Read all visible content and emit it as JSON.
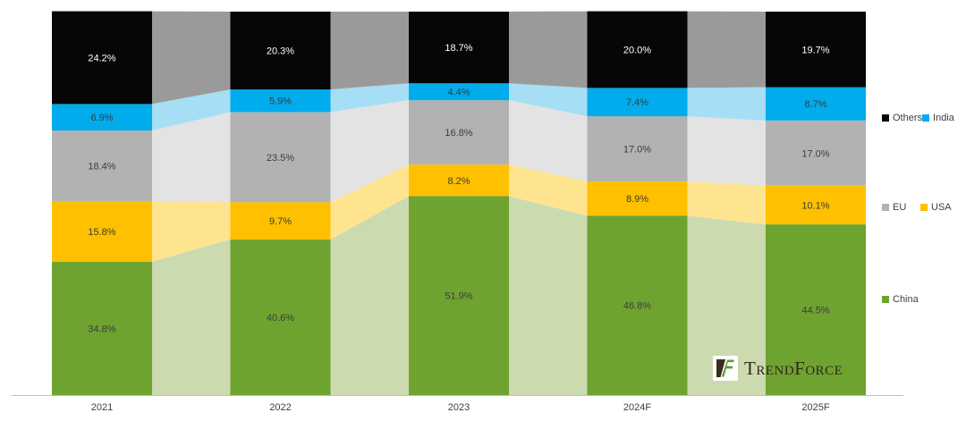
{
  "chart_data": {
    "type": "bar",
    "subtype": "100-percent-stacked-columns-with-flow-connectors",
    "categories": [
      "2021",
      "2022",
      "2023",
      "2024F",
      "2025F"
    ],
    "series": [
      {
        "name": "China",
        "color": "#6EA330",
        "connector_color": "#CCDAB0",
        "label_color": "#3C3C3C",
        "values": [
          34.8,
          40.6,
          51.9,
          46.8,
          44.5
        ]
      },
      {
        "name": "USA",
        "color": "#FFC000",
        "connector_color": "#FFE48F",
        "label_color": "#3C3C3C",
        "values": [
          15.8,
          9.7,
          8.2,
          8.9,
          10.1
        ]
      },
      {
        "name": "EU",
        "color": "#B2B2B2",
        "connector_color": "#E3E3E3",
        "label_color": "#3C3C3C",
        "values": [
          18.4,
          23.5,
          16.8,
          17.0,
          17.0
        ]
      },
      {
        "name": "India",
        "color": "#00ACEC",
        "connector_color": "#A6DEF5",
        "label_color": "#3C3C3C",
        "values": [
          6.9,
          5.9,
          4.4,
          7.4,
          8.7
        ]
      },
      {
        "name": "Others",
        "color": "#060606",
        "connector_color": "#9A9A9A",
        "label_color": "#FFFFFF",
        "values": [
          24.2,
          20.3,
          18.7,
          20.0,
          19.7
        ]
      }
    ],
    "value_suffix": "%",
    "value_decimals": 1,
    "ylim": [
      0,
      100
    ],
    "grid": false,
    "stack_order_bottom_to_top": [
      "China",
      "USA",
      "EU",
      "India",
      "Others"
    ],
    "legend_position": "right"
  },
  "legend": {
    "rows": [
      [
        "Others",
        "India"
      ],
      [
        "EU",
        "USA"
      ],
      [
        "China"
      ]
    ]
  },
  "axis": {
    "line_color": "#BFBFBF",
    "label_color": "#404040"
  },
  "branding": {
    "logo_text": "TrendForce"
  }
}
